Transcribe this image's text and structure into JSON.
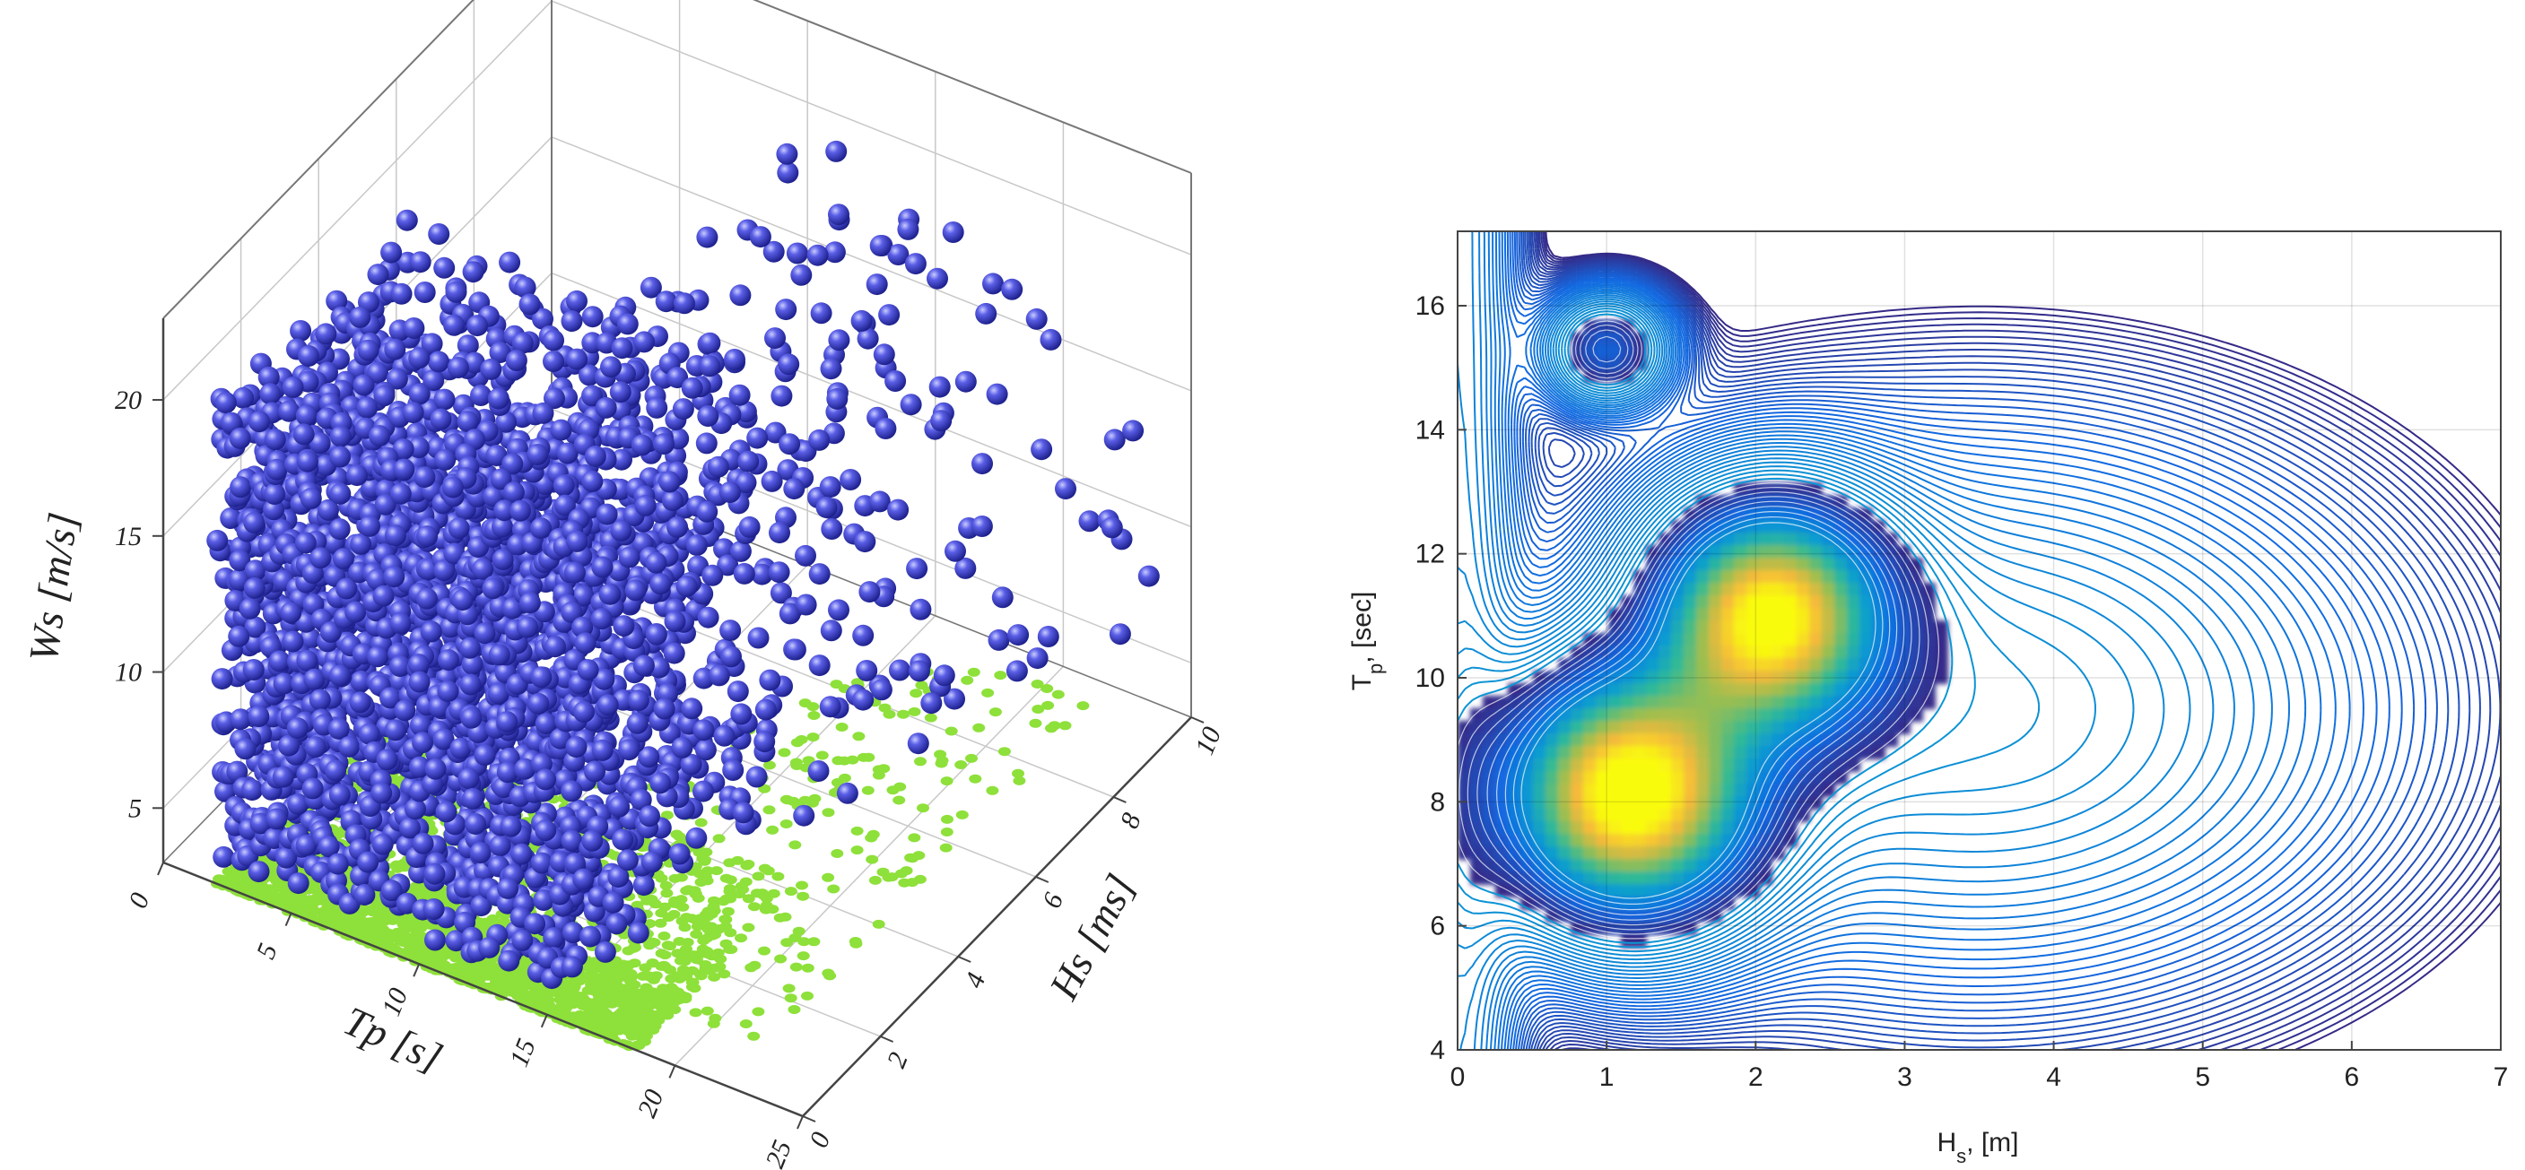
{
  "chart_data": [
    {
      "type": "scatter",
      "dimensions": "3d",
      "axes": {
        "x": {
          "label": "Tp [s]",
          "ticks": [
            0,
            5,
            10,
            15,
            20,
            25
          ],
          "range": [
            0,
            25
          ]
        },
        "y": {
          "label": "Hs [ms]",
          "ticks": [
            0,
            2,
            4,
            6,
            8,
            10
          ],
          "range": [
            0,
            10
          ]
        },
        "z": {
          "label": "Ws [m/s]",
          "ticks": [
            5,
            10,
            15,
            20
          ],
          "range": [
            3,
            23
          ]
        }
      },
      "grid": true,
      "series": [
        {
          "role": "3d points",
          "color": "#3b3fc8",
          "extent": {
            "tp": [
              2,
              22
            ],
            "hs": [
              0,
              10
            ],
            "ws": [
              4,
              22
            ]
          }
        },
        {
          "role": "floor projection",
          "color": "#8ee03a"
        }
      ]
    },
    {
      "type": "contour",
      "xlabel": "H_s, [m]",
      "ylabel": "T_p, [sec]",
      "xlim": [
        0,
        7
      ],
      "ylim": [
        4,
        17.2
      ],
      "xticks": [
        0,
        1,
        2,
        3,
        4,
        5,
        6,
        7
      ],
      "yticks": [
        4,
        6,
        8,
        10,
        12,
        14,
        16
      ],
      "grid": true,
      "colormap": "parula",
      "peaks": [
        {
          "Hs": 1.2,
          "Tp": 8.1
        },
        {
          "Hs": 2.1,
          "Tp": 11.0
        },
        {
          "Hs": 1.0,
          "Tp": 15.3
        }
      ]
    }
  ]
}
